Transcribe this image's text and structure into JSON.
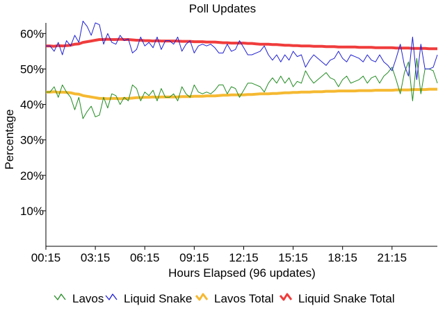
{
  "chart_data": {
    "type": "line",
    "title": "Poll Updates",
    "xlabel": "Hours Elapsed (96 updates)",
    "ylabel": "Percentage",
    "x_tick_labels": [
      "00:15",
      "03:15",
      "06:15",
      "09:15",
      "12:15",
      "15:15",
      "18:15",
      "21:15"
    ],
    "y_tick_labels": [
      "10%",
      "20%",
      "30%",
      "40%",
      "50%",
      "60%"
    ],
    "y_ticks": [
      10,
      20,
      30,
      40,
      50,
      60
    ],
    "ylim": [
      0,
      63
    ],
    "n_updates": 96,
    "grid": false,
    "legend_position": "bottom",
    "series": [
      {
        "name": "Lavos",
        "color": "#228b22",
        "values": [
          43.5,
          43.5,
          45,
          42,
          45.5,
          43.5,
          42,
          38.5,
          42,
          36,
          38,
          39.5,
          36.5,
          37,
          42,
          39,
          43,
          42.5,
          40,
          42,
          41,
          45.5,
          44.5,
          41,
          43.5,
          42.5,
          44,
          41,
          44.5,
          42,
          42,
          43,
          41,
          45,
          43,
          42,
          45.5,
          43.5,
          43,
          43.5,
          43,
          44,
          45.5,
          45.5,
          43,
          45,
          44.5,
          42,
          44,
          46,
          46,
          45.5,
          45,
          43.5,
          46,
          47.5,
          46,
          48,
          46,
          47.5,
          45,
          46.5,
          46,
          49.5,
          47.5,
          46,
          47,
          48,
          49,
          47.5,
          47,
          45,
          47,
          48,
          46,
          46.5,
          47,
          48,
          46,
          47.5,
          48,
          46,
          48,
          49,
          50.5,
          47,
          43,
          49,
          52,
          41,
          53,
          43,
          50,
          50,
          49.5,
          46
        ]
      },
      {
        "name": "Liquid Snake",
        "color": "#1e1ed2",
        "values": [
          56.5,
          56.5,
          55,
          57.5,
          54,
          58,
          56.5,
          59.5,
          57.5,
          63.5,
          62,
          59.5,
          63,
          62.5,
          57,
          60,
          57.5,
          57,
          59.5,
          58,
          58.5,
          54.5,
          55.5,
          59,
          56.5,
          57.5,
          56,
          59,
          55.5,
          58,
          58,
          57,
          59,
          55,
          57,
          58,
          54.5,
          56.5,
          57,
          56.5,
          57,
          56,
          54.5,
          54.5,
          57,
          55,
          55.5,
          58,
          56,
          54,
          54,
          54.5,
          55,
          56.5,
          54,
          52.5,
          54,
          52,
          54,
          52.5,
          55,
          53.5,
          54,
          50.5,
          52.5,
          54,
          53,
          52,
          51,
          52.5,
          53,
          55,
          53,
          52,
          54,
          53.5,
          53,
          52,
          54,
          52.5,
          52,
          54,
          52,
          51,
          49.5,
          53,
          57,
          51,
          48,
          59,
          47,
          57,
          50,
          50,
          50.5,
          54
        ]
      },
      {
        "name": "Lavos Total",
        "color": "#f5b932",
        "values": [
          43.5,
          43.5,
          43.6,
          43.4,
          43.5,
          43.4,
          43.3,
          43,
          42.9,
          42.5,
          42.3,
          42.1,
          41.9,
          41.7,
          41.7,
          41.6,
          41.7,
          41.7,
          41.6,
          41.7,
          41.7,
          41.8,
          41.9,
          41.9,
          42,
          42,
          42.1,
          42,
          42.1,
          42.1,
          42.1,
          42.1,
          42.1,
          42.2,
          42.2,
          42.2,
          42.3,
          42.3,
          42.3,
          42.4,
          42.4,
          42.4,
          42.5,
          42.6,
          42.6,
          42.7,
          42.7,
          42.7,
          42.7,
          42.8,
          42.8,
          42.9,
          43,
          43,
          43,
          43.1,
          43.1,
          43.2,
          43.3,
          43.3,
          43.4,
          43.4,
          43.5,
          43.5,
          43.5,
          43.6,
          43.6,
          43.6,
          43.7,
          43.7,
          43.7,
          43.8,
          43.8,
          43.8,
          43.8,
          43.8,
          43.9,
          43.9,
          43.9,
          43.9,
          44,
          44,
          44,
          44,
          44,
          44.1,
          44.1,
          44.1,
          44.1,
          44.2,
          44.2,
          44.2,
          44.2,
          44.3,
          44.3,
          44.3
        ]
      },
      {
        "name": "Liquid Snake Total",
        "color": "#f03c3c",
        "values": [
          56.5,
          56.5,
          56.4,
          56.6,
          56.5,
          56.6,
          56.7,
          57,
          57.1,
          57.5,
          57.7,
          57.9,
          58.1,
          58.3,
          58.3,
          58.4,
          58.3,
          58.3,
          58.4,
          58.3,
          58.3,
          58.2,
          58.1,
          58.1,
          58,
          58,
          57.9,
          58,
          57.9,
          57.9,
          57.9,
          57.9,
          57.9,
          57.8,
          57.8,
          57.8,
          57.7,
          57.7,
          57.7,
          57.6,
          57.6,
          57.6,
          57.5,
          57.4,
          57.4,
          57.3,
          57.3,
          57.3,
          57.3,
          57.2,
          57.2,
          57.1,
          57,
          57,
          57,
          56.9,
          56.9,
          56.8,
          56.7,
          56.7,
          56.6,
          56.6,
          56.5,
          56.5,
          56.5,
          56.4,
          56.4,
          56.4,
          56.3,
          56.3,
          56.3,
          56.2,
          56.2,
          56.2,
          56.2,
          56.2,
          56.1,
          56.1,
          56.1,
          56.1,
          56,
          56,
          56,
          56,
          56,
          55.9,
          55.9,
          55.9,
          55.9,
          55.8,
          55.8,
          55.8,
          55.8,
          55.7,
          55.7,
          55.7
        ]
      }
    ]
  }
}
